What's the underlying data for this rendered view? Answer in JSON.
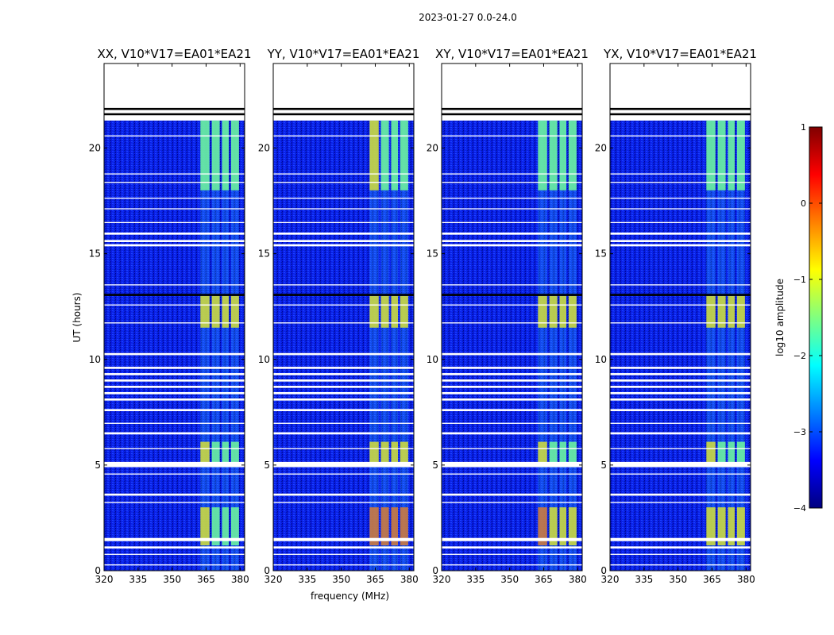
{
  "chart_data": {
    "type": "heatmap",
    "suptitle": "2023-01-27 0.0-24.0",
    "xlabel": "frequency (MHz)",
    "ylabel": "UT (hours)",
    "xlim": [
      320,
      382
    ],
    "ylim": [
      0,
      24
    ],
    "xticks": [
      320,
      335,
      350,
      365,
      380
    ],
    "yticks": [
      0,
      5,
      10,
      15,
      20
    ],
    "xtick_labels": [
      "320",
      "335",
      "350",
      "365",
      "380"
    ],
    "ytick_labels": [
      "0",
      "5",
      "10",
      "15",
      "20"
    ],
    "colorbar": {
      "label": "log10 amplitude",
      "range": [
        -4,
        1
      ],
      "ticks": [
        1,
        0,
        -1,
        -2,
        -3,
        -4
      ],
      "tick_labels": [
        "1",
        "0",
        "−1",
        "−2",
        "−3",
        "−4"
      ],
      "colors": [
        "#000080",
        "#0000ff",
        "#0080ff",
        "#00ffff",
        "#80ff80",
        "#ffff00",
        "#ff8000",
        "#ff0000",
        "#800000"
      ]
    },
    "data_end_hour": 21.3,
    "bright_bands_mhz": [
      {
        "start": 362.5,
        "end": 366.5
      },
      {
        "start": 367.5,
        "end": 371.0
      },
      {
        "start": 372.0,
        "end": 375.0
      },
      {
        "start": 376.0,
        "end": 379.5
      }
    ],
    "flagged_hours": [
      {
        "start": 21.35,
        "end": 21.55,
        "kind": "blank"
      },
      {
        "start": 21.55,
        "end": 21.65,
        "kind": "black"
      },
      {
        "start": 21.65,
        "end": 21.8,
        "kind": "blank"
      },
      {
        "start": 21.8,
        "end": 21.9,
        "kind": "black"
      },
      {
        "start": 20.55,
        "end": 20.6,
        "kind": "blank"
      },
      {
        "start": 18.75,
        "end": 18.8,
        "kind": "blank"
      },
      {
        "start": 18.35,
        "end": 18.4,
        "kind": "blank"
      },
      {
        "start": 17.6,
        "end": 17.65,
        "kind": "blank"
      },
      {
        "start": 17.1,
        "end": 17.15,
        "kind": "blank"
      },
      {
        "start": 16.45,
        "end": 16.5,
        "kind": "blank"
      },
      {
        "start": 15.9,
        "end": 16.0,
        "kind": "blank"
      },
      {
        "start": 15.55,
        "end": 15.65,
        "kind": "blank"
      },
      {
        "start": 15.35,
        "end": 15.45,
        "kind": "blank"
      },
      {
        "start": 13.5,
        "end": 13.55,
        "kind": "blank"
      },
      {
        "start": 13.0,
        "end": 13.1,
        "kind": "black"
      },
      {
        "start": 12.55,
        "end": 12.6,
        "kind": "blank"
      },
      {
        "start": 11.7,
        "end": 11.75,
        "kind": "blank"
      },
      {
        "start": 10.2,
        "end": 10.3,
        "kind": "blank"
      },
      {
        "start": 9.55,
        "end": 9.65,
        "kind": "blank"
      },
      {
        "start": 9.25,
        "end": 9.35,
        "kind": "blank"
      },
      {
        "start": 8.95,
        "end": 9.05,
        "kind": "blank"
      },
      {
        "start": 8.65,
        "end": 8.75,
        "kind": "blank"
      },
      {
        "start": 8.35,
        "end": 8.45,
        "kind": "blank"
      },
      {
        "start": 8.05,
        "end": 8.15,
        "kind": "blank"
      },
      {
        "start": 7.55,
        "end": 7.65,
        "kind": "blank"
      },
      {
        "start": 6.95,
        "end": 7.0,
        "kind": "blank"
      },
      {
        "start": 6.45,
        "end": 6.55,
        "kind": "blank"
      },
      {
        "start": 5.75,
        "end": 5.8,
        "kind": "blank"
      },
      {
        "start": 4.9,
        "end": 5.15,
        "kind": "blank"
      },
      {
        "start": 4.55,
        "end": 4.6,
        "kind": "blank"
      },
      {
        "start": 3.55,
        "end": 3.65,
        "kind": "blank"
      },
      {
        "start": 3.2,
        "end": 3.25,
        "kind": "blank"
      },
      {
        "start": 1.4,
        "end": 1.55,
        "kind": "blank"
      },
      {
        "start": 1.05,
        "end": 1.15,
        "kind": "blank"
      },
      {
        "start": 0.75,
        "end": 0.8,
        "kind": "blank"
      },
      {
        "start": 0.25,
        "end": 0.3,
        "kind": "blank"
      }
    ],
    "panels": [
      {
        "title": "XX, V10*V17=EA01*EA21",
        "show_ylabel": true,
        "show_xlabel": false,
        "band_intensity_hours": [
          {
            "start": 1.2,
            "end": 3.0,
            "level": 0.55
          },
          {
            "start": 5.0,
            "end": 6.1,
            "level": 0.55
          },
          {
            "start": 11.5,
            "end": 13.0,
            "level": 0.6
          },
          {
            "start": 18.0,
            "end": 21.3,
            "level": 0.5
          }
        ]
      },
      {
        "title": "YY, V10*V17=EA01*EA21",
        "show_ylabel": false,
        "show_xlabel": true,
        "band_intensity_hours": [
          {
            "start": 1.2,
            "end": 3.0,
            "level": 0.85
          },
          {
            "start": 5.0,
            "end": 6.1,
            "level": 0.6
          },
          {
            "start": 11.5,
            "end": 13.0,
            "level": 0.6
          },
          {
            "start": 18.0,
            "end": 21.3,
            "level": 0.55
          }
        ]
      },
      {
        "title": "XY, V10*V17=EA01*EA21",
        "show_ylabel": false,
        "show_xlabel": false,
        "band_intensity_hours": [
          {
            "start": 1.2,
            "end": 3.0,
            "level": 0.75
          },
          {
            "start": 5.0,
            "end": 6.1,
            "level": 0.55
          },
          {
            "start": 11.5,
            "end": 13.0,
            "level": 0.65
          },
          {
            "start": 18.0,
            "end": 21.3,
            "level": 0.5
          }
        ]
      },
      {
        "title": "YX, V10*V17=EA01*EA21",
        "show_ylabel": false,
        "show_xlabel": false,
        "band_intensity_hours": [
          {
            "start": 1.2,
            "end": 3.0,
            "level": 0.65
          },
          {
            "start": 5.0,
            "end": 6.1,
            "level": 0.55
          },
          {
            "start": 11.5,
            "end": 13.0,
            "level": 0.6
          },
          {
            "start": 18.0,
            "end": 21.3,
            "level": 0.5
          }
        ]
      }
    ]
  }
}
